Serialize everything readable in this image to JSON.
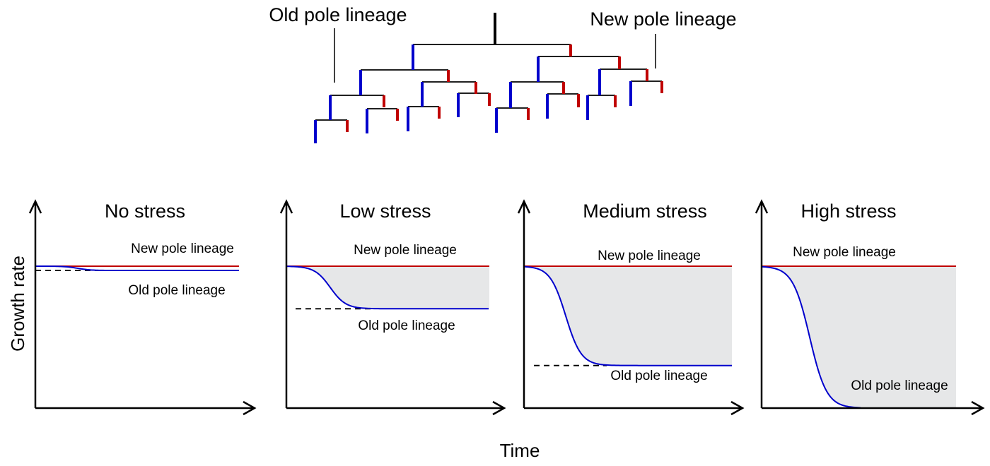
{
  "tree": {
    "old_label": "Old pole lineage",
    "new_label": "New pole lineage",
    "colors": {
      "old": "#0000cc",
      "new": "#c00000",
      "stem": "#000000"
    }
  },
  "axes": {
    "y_label": "Growth  rate",
    "x_label": "Time"
  },
  "panels": [
    {
      "title": "No stress",
      "new_label": "New pole lineage",
      "old_label": "Old pole lineage",
      "old_relative_growth": 0.97
    },
    {
      "title": "Low stress",
      "new_label": "New pole lineage",
      "old_label": "Old pole lineage",
      "old_relative_growth": 0.7
    },
    {
      "title": "Medium stress",
      "new_label": "New pole lineage",
      "old_label": "Old pole lineage",
      "old_relative_growth": 0.3
    },
    {
      "title": "High stress",
      "new_label": "New pole lineage",
      "old_label": "Old pole lineage",
      "old_relative_growth": 0.0
    }
  ]
}
